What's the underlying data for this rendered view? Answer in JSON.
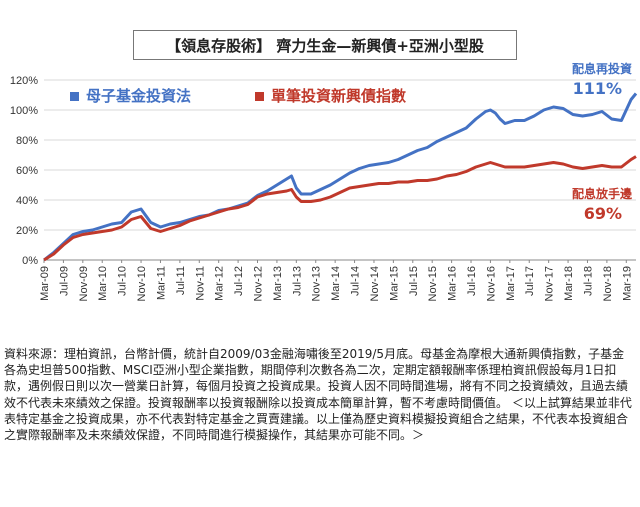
{
  "chart_data": {
    "type": "line",
    "title": "【領息存股術】 齊力生金—新興債+亞洲小型股",
    "xlabel": "",
    "ylabel": "",
    "ylim": [
      0,
      120
    ],
    "yticks": [
      "0%",
      "20%",
      "40%",
      "60%",
      "80%",
      "100%",
      "120%"
    ],
    "grid": true,
    "legend_position": "top-left",
    "categories": [
      "Mar-09",
      "Jul-09",
      "Nov-09",
      "Mar-10",
      "Jul-10",
      "Nov-10",
      "Mar-11",
      "Jul-11",
      "Nov-11",
      "Mar-12",
      "Jul-12",
      "Nov-12",
      "Mar-13",
      "Jul-13",
      "Nov-13",
      "Mar-14",
      "Jul-14",
      "Nov-14",
      "Mar-15",
      "Jul-15",
      "Nov-15",
      "Mar-16",
      "Jul-16",
      "Nov-16",
      "Mar-17",
      "Jul-17",
      "Nov-17",
      "Mar-18",
      "Jul-18",
      "Nov-18",
      "Mar-19"
    ],
    "x_months": 122,
    "series": [
      {
        "name": "母子基金投資法",
        "color": "#4472c4",
        "points": [
          [
            0,
            0
          ],
          [
            2,
            5
          ],
          [
            4,
            11
          ],
          [
            6,
            17
          ],
          [
            8,
            19
          ],
          [
            10,
            20
          ],
          [
            12,
            22
          ],
          [
            14,
            24
          ],
          [
            16,
            25
          ],
          [
            18,
            32
          ],
          [
            20,
            34
          ],
          [
            22,
            25
          ],
          [
            24,
            22
          ],
          [
            26,
            24
          ],
          [
            28,
            25
          ],
          [
            30,
            27
          ],
          [
            32,
            29
          ],
          [
            34,
            30
          ],
          [
            36,
            33
          ],
          [
            38,
            34
          ],
          [
            40,
            36
          ],
          [
            42,
            38
          ],
          [
            44,
            43
          ],
          [
            46,
            46
          ],
          [
            48,
            50
          ],
          [
            50,
            54
          ],
          [
            51,
            56
          ],
          [
            52,
            48
          ],
          [
            53,
            44
          ],
          [
            55,
            44
          ],
          [
            57,
            47
          ],
          [
            59,
            50
          ],
          [
            61,
            54
          ],
          [
            63,
            58
          ],
          [
            65,
            61
          ],
          [
            67,
            63
          ],
          [
            69,
            64
          ],
          [
            71,
            65
          ],
          [
            73,
            67
          ],
          [
            75,
            70
          ],
          [
            77,
            73
          ],
          [
            79,
            75
          ],
          [
            81,
            79
          ],
          [
            83,
            82
          ],
          [
            85,
            85
          ],
          [
            87,
            88
          ],
          [
            89,
            94
          ],
          [
            91,
            99
          ],
          [
            92,
            100
          ],
          [
            93,
            98
          ],
          [
            94,
            94
          ],
          [
            95,
            91
          ],
          [
            97,
            93
          ],
          [
            99,
            93
          ],
          [
            101,
            96
          ],
          [
            103,
            100
          ],
          [
            105,
            102
          ],
          [
            107,
            101
          ],
          [
            109,
            97
          ],
          [
            111,
            96
          ],
          [
            113,
            97
          ],
          [
            115,
            99
          ],
          [
            117,
            94
          ],
          [
            119,
            93
          ],
          [
            121,
            107
          ],
          [
            122,
            111
          ]
        ]
      },
      {
        "name": "單筆投資新興債指數",
        "color": "#c0392b",
        "points": [
          [
            0,
            0
          ],
          [
            2,
            4
          ],
          [
            4,
            10
          ],
          [
            6,
            15
          ],
          [
            8,
            17
          ],
          [
            10,
            18
          ],
          [
            12,
            19
          ],
          [
            14,
            20
          ],
          [
            16,
            22
          ],
          [
            18,
            27
          ],
          [
            20,
            29
          ],
          [
            22,
            21
          ],
          [
            24,
            19
          ],
          [
            26,
            21
          ],
          [
            28,
            23
          ],
          [
            30,
            26
          ],
          [
            32,
            28
          ],
          [
            34,
            30
          ],
          [
            36,
            32
          ],
          [
            38,
            34
          ],
          [
            40,
            35
          ],
          [
            42,
            37
          ],
          [
            44,
            42
          ],
          [
            46,
            44
          ],
          [
            48,
            45
          ],
          [
            50,
            46
          ],
          [
            51,
            47
          ],
          [
            52,
            42
          ],
          [
            53,
            39
          ],
          [
            55,
            39
          ],
          [
            57,
            40
          ],
          [
            59,
            42
          ],
          [
            61,
            45
          ],
          [
            63,
            48
          ],
          [
            65,
            49
          ],
          [
            67,
            50
          ],
          [
            69,
            51
          ],
          [
            71,
            51
          ],
          [
            73,
            52
          ],
          [
            75,
            52
          ],
          [
            77,
            53
          ],
          [
            79,
            53
          ],
          [
            81,
            54
          ],
          [
            83,
            56
          ],
          [
            85,
            57
          ],
          [
            87,
            59
          ],
          [
            89,
            62
          ],
          [
            91,
            64
          ],
          [
            92,
            65
          ],
          [
            93,
            64
          ],
          [
            94,
            63
          ],
          [
            95,
            62
          ],
          [
            97,
            62
          ],
          [
            99,
            62
          ],
          [
            101,
            63
          ],
          [
            103,
            64
          ],
          [
            105,
            65
          ],
          [
            107,
            64
          ],
          [
            109,
            62
          ],
          [
            111,
            61
          ],
          [
            113,
            62
          ],
          [
            115,
            63
          ],
          [
            117,
            62
          ],
          [
            119,
            62
          ],
          [
            121,
            67
          ],
          [
            122,
            69
          ]
        ]
      }
    ],
    "annotations": [
      {
        "label": "配息再投資",
        "value": "111%",
        "color": "#4472c4"
      },
      {
        "label": "配息放手邊",
        "value": "69%",
        "color": "#c0392b"
      }
    ]
  },
  "source_note": "資料來源：理柏資訊，台幣計價，統計自2009/03金融海嘯後至2019/5月底。母基金為摩根大通新興債指數，子基金各為史坦普500指數、MSCI亞洲小型企業指數，期間停利次數各為二次，定期定額報酬率係理柏資訊假設每月1日扣款，遇例假日則以次一營業日計算，每個月投資之投資成果。投資人因不同時間進場，將有不同之投資績效，且過去績效不代表未來績效之保證。投資報酬率以投資報酬除以投資成本簡單計算，暫不考慮時間價值。 ＜以上試算結果並非代表特定基金之投資成果，亦不代表對特定基金之買賣建議。以上僅為歷史資料模擬投資組合之結果，不代表本投資組合之實際報酬率及未來績效保證，不同時間進行模擬操作，其結果亦可能不同。＞"
}
